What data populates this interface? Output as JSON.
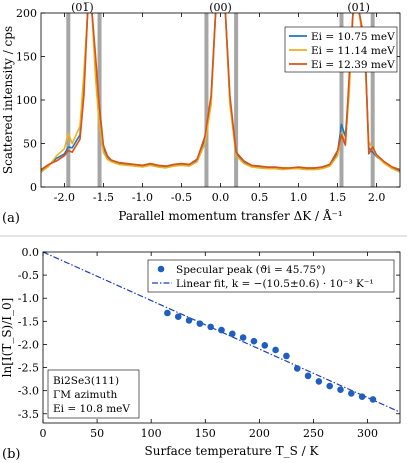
{
  "chart_data": [
    {
      "type": "line",
      "panel_label": "(a)",
      "xlabel": "Parallel momentum transfer ΔK / Å⁻¹",
      "ylabel": "Scattered intensity / cps",
      "xlim": [
        -2.3,
        2.3
      ],
      "ylim": [
        0,
        200
      ],
      "xticks": [
        -2.0,
        -1.5,
        -1.0,
        -0.5,
        0.0,
        0.5,
        1.0,
        1.5,
        2.0
      ],
      "xtick_labels": [
        "-2.0",
        "-1.5",
        "-1.0",
        "-0.5",
        "0.0",
        "0.5",
        "1.0",
        "1.5",
        "2.0"
      ],
      "yticks": [
        0,
        50,
        100,
        150,
        200
      ],
      "ytick_labels": [
        "0",
        "50",
        "100",
        "150",
        "200"
      ],
      "grid": false,
      "legend_position": "top-right",
      "peak_labels": [
        {
          "x": -1.77,
          "text": "(01̅)"
        },
        {
          "x": 0.0,
          "text": "(00)"
        },
        {
          "x": 1.77,
          "text": "(01)"
        }
      ],
      "vertical_markers": [
        -1.95,
        -1.55,
        -0.18,
        0.2,
        1.55,
        1.95
      ],
      "series": [
        {
          "name": "E_i = 10.75 meV",
          "legend_label": "Ei = 10.75 meV",
          "color": "#1f77b4",
          "x": [
            -2.3,
            -2.2,
            -2.1,
            -2.0,
            -1.95,
            -1.9,
            -1.8,
            -1.75,
            -1.7,
            -1.65,
            -1.6,
            -1.56,
            -1.5,
            -1.45,
            -1.4,
            -1.3,
            -1.2,
            -1.1,
            -1.0,
            -0.9,
            -0.8,
            -0.7,
            -0.6,
            -0.5,
            -0.4,
            -0.3,
            -0.2,
            -0.12,
            -0.06,
            0.0,
            0.06,
            0.12,
            0.2,
            0.3,
            0.4,
            0.5,
            0.6,
            0.7,
            0.8,
            0.9,
            1.0,
            1.1,
            1.2,
            1.3,
            1.4,
            1.5,
            1.55,
            1.6,
            1.65,
            1.7,
            1.77,
            1.85,
            1.9,
            1.95,
            2.0,
            2.1,
            2.2,
            2.3
          ],
          "y": [
            18,
            25,
            33,
            38,
            46,
            45,
            60,
            115,
            205,
            205,
            140,
            95,
            45,
            35,
            30,
            27,
            26,
            25,
            24,
            26,
            24,
            23,
            25,
            26,
            25,
            30,
            55,
            100,
            205,
            205,
            205,
            100,
            38,
            28,
            24,
            23,
            22,
            22,
            21,
            21,
            22,
            21,
            21,
            22,
            25,
            40,
            72,
            58,
            120,
            205,
            205,
            160,
            45,
            40,
            35,
            28,
            22,
            18
          ]
        },
        {
          "name": "E_i = 11.14 meV",
          "legend_label": "Ei = 11.14 meV",
          "color": "#edb120",
          "x": [
            -2.3,
            -2.2,
            -2.1,
            -2.0,
            -1.95,
            -1.9,
            -1.8,
            -1.75,
            -1.7,
            -1.65,
            -1.6,
            -1.56,
            -1.5,
            -1.45,
            -1.4,
            -1.3,
            -1.2,
            -1.1,
            -1.0,
            -0.9,
            -0.8,
            -0.7,
            -0.6,
            -0.5,
            -0.4,
            -0.3,
            -0.2,
            -0.12,
            -0.06,
            0.0,
            0.06,
            0.12,
            0.2,
            0.3,
            0.4,
            0.5,
            0.6,
            0.7,
            0.8,
            0.9,
            1.0,
            1.1,
            1.2,
            1.3,
            1.4,
            1.5,
            1.55,
            1.6,
            1.65,
            1.7,
            1.77,
            1.85,
            1.9,
            1.95,
            2.0,
            2.1,
            2.2,
            2.3
          ],
          "y": [
            17,
            24,
            36,
            44,
            62,
            50,
            70,
            130,
            205,
            205,
            125,
            78,
            40,
            32,
            29,
            26,
            25,
            24,
            23,
            25,
            23,
            22,
            24,
            25,
            24,
            29,
            50,
            95,
            205,
            205,
            205,
            95,
            36,
            27,
            23,
            22,
            21,
            21,
            20,
            21,
            21,
            20,
            20,
            21,
            24,
            36,
            62,
            52,
            110,
            205,
            205,
            150,
            52,
            44,
            36,
            27,
            21,
            17
          ]
        },
        {
          "name": "E_i = 12.39 meV",
          "legend_label": "Ei = 12.39 meV",
          "color": "#d95319",
          "x": [
            -2.3,
            -2.2,
            -2.1,
            -2.0,
            -1.95,
            -1.9,
            -1.8,
            -1.75,
            -1.7,
            -1.65,
            -1.6,
            -1.56,
            -1.5,
            -1.45,
            -1.4,
            -1.3,
            -1.2,
            -1.1,
            -1.0,
            -0.9,
            -0.8,
            -0.7,
            -0.6,
            -0.5,
            -0.4,
            -0.3,
            -0.2,
            -0.12,
            -0.06,
            0.0,
            0.06,
            0.12,
            0.2,
            0.3,
            0.4,
            0.5,
            0.6,
            0.7,
            0.8,
            0.9,
            1.0,
            1.1,
            1.2,
            1.3,
            1.4,
            1.5,
            1.55,
            1.6,
            1.65,
            1.7,
            1.77,
            1.85,
            1.9,
            1.95,
            2.0,
            2.1,
            2.2,
            2.3
          ],
          "y": [
            20,
            26,
            30,
            36,
            42,
            40,
            55,
            105,
            205,
            205,
            150,
            100,
            48,
            36,
            31,
            28,
            27,
            26,
            25,
            27,
            25,
            24,
            26,
            27,
            26,
            32,
            58,
            105,
            205,
            205,
            205,
            105,
            40,
            30,
            25,
            24,
            23,
            23,
            22,
            22,
            23,
            22,
            22,
            23,
            26,
            42,
            60,
            48,
            130,
            205,
            205,
            165,
            38,
            46,
            37,
            29,
            23,
            20
          ]
        }
      ]
    },
    {
      "type": "scatter",
      "panel_label": "(b)",
      "xlabel": "Surface temperature T_S / K",
      "ylabel": "ln[I(T_S)/I_0]",
      "xlim": [
        0,
        330
      ],
      "ylim": [
        -3.7,
        0
      ],
      "xticks": [
        0,
        50,
        100,
        150,
        200,
        250,
        300
      ],
      "xtick_labels": [
        "0",
        "50",
        "100",
        "150",
        "200",
        "250",
        "300"
      ],
      "yticks": [
        0,
        -0.5,
        -1.0,
        -1.5,
        -2.0,
        -2.5,
        -3.0,
        -3.5
      ],
      "ytick_labels": [
        "0.0",
        "-0.5",
        "-1.0",
        "-1.5",
        "-2.0",
        "-2.5",
        "-3.0",
        "-3.5"
      ],
      "grid": false,
      "legend_position": "top-right",
      "annotation_lines": [
        "Bi2Se3(111)",
        "ΓM azimuth",
        "Ei = 10.8 meV"
      ],
      "series": [
        {
          "name": "Specular peak",
          "legend_label": "Specular peak (ϑi = 45.75°)",
          "color": "#1f5fbf",
          "x": [
            115,
            125,
            135,
            145,
            155,
            165,
            175,
            185,
            195,
            205,
            215,
            225,
            235,
            245,
            255,
            265,
            275,
            285,
            295,
            305
          ],
          "y": [
            -1.32,
            -1.4,
            -1.48,
            -1.55,
            -1.62,
            -1.69,
            -1.77,
            -1.85,
            -1.93,
            -2.02,
            -2.12,
            -2.25,
            -2.52,
            -2.68,
            -2.8,
            -2.9,
            -2.98,
            -3.06,
            -3.13,
            -3.19
          ]
        },
        {
          "name": "Linear fit",
          "legend_label": "Linear fit, k = −(10.5±0.6) · 10⁻³ K⁻¹",
          "color": "#1f3fbf",
          "x": [
            0,
            330
          ],
          "y": [
            0,
            -3.465
          ]
        }
      ]
    }
  ]
}
